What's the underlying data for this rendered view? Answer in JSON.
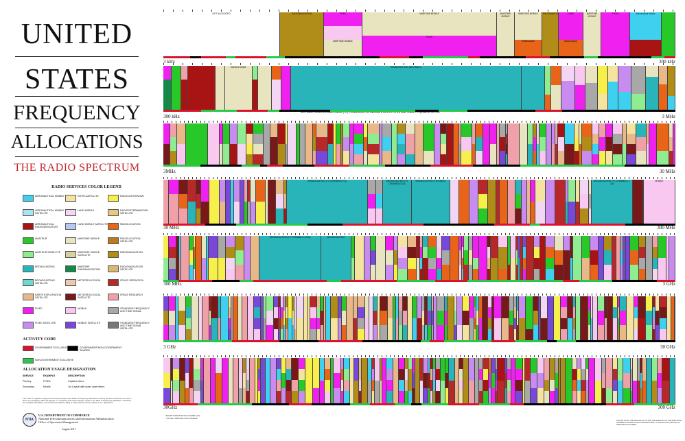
{
  "title": {
    "line1": "UNITED",
    "line2": "STATES",
    "line3": "FREQUENCY",
    "line4": "ALLOCATIONS",
    "subtitle": "THE RADIO SPECTRUM"
  },
  "legend": {
    "heading": "RADIO SERVICES COLOR LEGEND",
    "items": [
      {
        "label": "AERONAUTICAL MOBILE",
        "color": "#3fd0f0"
      },
      {
        "label": "INTER-SATELLITE",
        "color": "#f4e4a0"
      },
      {
        "label": "RADIO ASTRONOMY",
        "color": "#f8f04a"
      },
      {
        "label": "AERONAUTICAL MOBILE SATELLITE",
        "color": "#a8e4f4"
      },
      {
        "label": "LAND MOBILE",
        "color": "#f2d6f4"
      },
      {
        "label": "RADIODETERMINATION SATELLITE",
        "color": "#e8c880"
      },
      {
        "label": "AERONAUTICAL RADIONAVIGATION",
        "color": "#a81414"
      },
      {
        "label": "LAND MOBILE SATELLITE",
        "color": "#b8c8f0"
      },
      {
        "label": "RADIOLOCATION",
        "color": "#e86418"
      },
      {
        "label": "AMATEUR",
        "color": "#28c828"
      },
      {
        "label": "MARITIME MOBILE",
        "color": "#e8e4c0"
      },
      {
        "label": "RADIOLOCATION SATELLITE",
        "color": "#c07820"
      },
      {
        "label": "AMATEUR SATELLITE",
        "color": "#90ec90"
      },
      {
        "label": "MARITIME MOBILE SATELLITE",
        "color": "#d8d0a0"
      },
      {
        "label": "RADIONAVIGATION",
        "color": "#b08c18"
      },
      {
        "label": "BROADCASTING",
        "color": "#28b4b8"
      },
      {
        "label": "MARITIME RADIONAVIGATION",
        "color": "#148848"
      },
      {
        "label": "RADIONAVIGATION SATELLITE",
        "color": "#d8b870"
      },
      {
        "label": "BROADCASTING SATELLITE",
        "color": "#70d8d0"
      },
      {
        "label": "METEOROLOGICAL",
        "color": "#f0c8b0"
      },
      {
        "label": "SPACE OPERATION",
        "color": "#b82828"
      },
      {
        "label": "EARTH EXPLORATION SATELLITE",
        "color": "#e8b888"
      },
      {
        "label": "METEOROLOGICAL SATELLITE",
        "color": "#781818"
      },
      {
        "label": "SPACE RESEARCH",
        "color": "#f0a0a8"
      },
      {
        "label": "FIXED",
        "color": "#f020f0"
      },
      {
        "label": "MOBILE",
        "color": "#f8c8f0"
      },
      {
        "label": "STANDARD FREQUENCY AND TIME SIGNAL",
        "color": "#a8a8a8"
      },
      {
        "label": "FIXED SATELLITE",
        "color": "#c88cf0"
      },
      {
        "label": "MOBILE SATELLITE",
        "color": "#7848d8"
      },
      {
        "label": "STANDARD FREQUENCY AND TIME SIGNAL SATELLITE",
        "color": "#787878"
      }
    ]
  },
  "activity": {
    "heading": "ACTIVITY CODE",
    "items": [
      {
        "label": "GOVERNMENT EXCLUSIVE",
        "color": "#d8142c"
      },
      {
        "label": "GOVERNMENT/NON-GOVERNMENT SHARED",
        "color": "#000000"
      },
      {
        "label": "NON-GOVERNMENT EXCLUSIVE",
        "color": "#28c848"
      }
    ]
  },
  "usage": {
    "heading": "ALLOCATION USAGE DESIGNATION",
    "columns": [
      "SERVICE",
      "EXAMPLE",
      "DESCRIPTION"
    ],
    "rows": [
      [
        "Primary",
        "FIXED",
        "Capital Letters"
      ],
      [
        "Secondary",
        "Mobile",
        "1st Capital with lower case letters"
      ]
    ]
  },
  "fine_print": "This chart is a graphic single-point-in-time portrayal of the Table of Frequency Allocations used by the FCC and NTIA. As such, it does not completely reflect all aspects, i.e. footnotes and recent changes made to the Table of Frequency Allocations. Therefore, for complete information, users should consult the Table to determine the current status of U.S. allocations.",
  "dept": {
    "line1": "U.S. DEPARTMENT OF COMMERCE",
    "line2": "National Telecommunications and Information Administration",
    "line3": "Office of Spectrum Management",
    "seal": "NTIA"
  },
  "date": "August 2011",
  "bands": [
    {
      "left": "3 kHz",
      "right": "300 kHz"
    },
    {
      "left": "300 kHz",
      "right": "3 MHz"
    },
    {
      "left": "3MHz",
      "right": "30 MHz"
    },
    {
      "left": "30 MHz",
      "right": "300 MHz"
    },
    {
      "left": "300 MHz",
      "right": "3 GHz"
    },
    {
      "left": "3 GHz",
      "right": "30 GHz"
    },
    {
      "left": "30GHz",
      "right": "300 GHz"
    }
  ],
  "band1_labels": {
    "not_allocated": "NOT ALLOCATED",
    "radionav": "RADIONAVIGATION",
    "fixed": "FIXED",
    "maritime": "MARITIME MOBILE",
    "radiolocation": "Radiolocation",
    "aero": "Aeronautical Mobile"
  },
  "band2_note": "Non-Federal Travelers Information Stations (TIS), a mobile service, are authorized in the 535-1705 kHz band. Federal TIS operates at 1610 kHz.",
  "band2_labels": {
    "broadcasting": "BROADCASTING (AM RADIO)",
    "aero_radionav": "Aeronautical Mobile",
    "maritime": "Maritime Mobile"
  },
  "band4_labels": {
    "bc1": "BROADCASTING (TV CHANNELS 2-4)",
    "bc2": "BROADCASTING (TV CHANNELS 5-6)",
    "bc3": "BROADCASTING (FM RADIO)",
    "bc4": "BROADCASTING (TV CHANNELS 7-13)",
    "mobile": "MOBILE"
  },
  "band5_labels": {
    "bc": "BROADCASTING (TV CHANNELS 14-20)",
    "bc2": "BROADCASTING"
  },
  "right_corner": "PLEASE NOTE: THE SPACING ALLOTTED THE SERVICES IN THE SPECTRUM SEGMENTS SHOWN IS NOT PROPORTIONAL TO THE ACTUAL AMOUNT OF SPECTRUM OCCUPIED.",
  "bottom_note": "* EXCEPT AERONAUTICAL MOBILE (R)\n** EXCEPT AERONAUTICAL MOBILE"
}
